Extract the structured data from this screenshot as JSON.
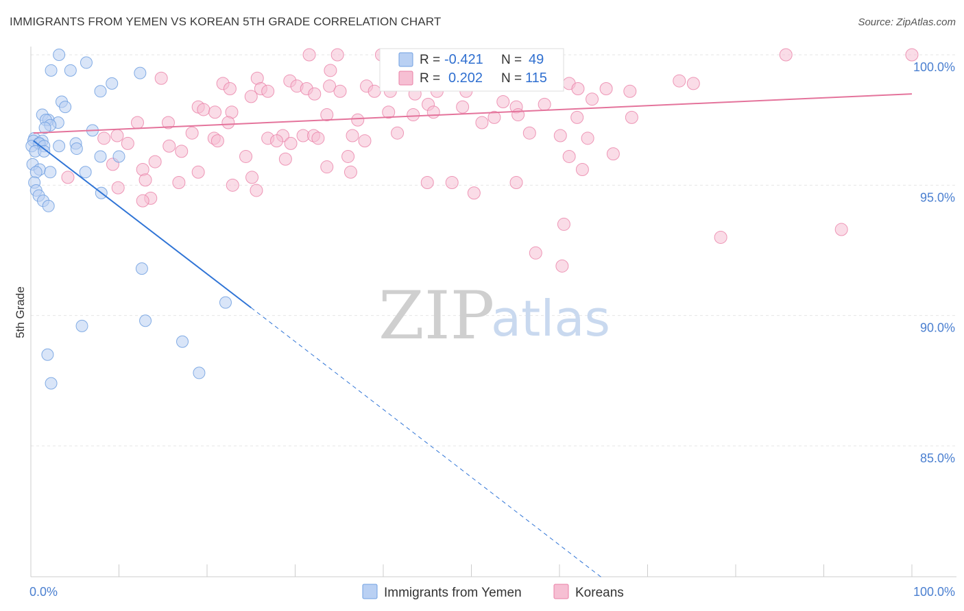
{
  "title": "IMMIGRANTS FROM YEMEN VS KOREAN 5TH GRADE CORRELATION CHART",
  "source": "Source: ZipAtlas.com",
  "watermark": {
    "zip": "ZIP",
    "atlas": "atlas"
  },
  "colors": {
    "blue": "#6f9fe0",
    "blue_fill": "#b9d0f3",
    "blue_line": "#2f74d6",
    "pink": "#ea7fa6",
    "pink_fill": "#f6bfd3",
    "pink_line": "#e4739b",
    "grid": "#e6e6e6",
    "tick_text": "#4a7fd0"
  },
  "legend": {
    "rows": [
      {
        "r_label": "R =",
        "r_value": "-0.421",
        "n_label": "N =",
        "n_value": "49"
      },
      {
        "r_label": "R =",
        "r_value": "0.202",
        "n_label": "N =",
        "n_value": "115"
      }
    ]
  },
  "bottom_legend": [
    "Immigrants from Yemen",
    "Koreans"
  ],
  "chart_data": {
    "type": "scatter",
    "title": "IMMIGRANTS FROM YEMEN VS KOREAN 5TH GRADE CORRELATION CHART",
    "xlabel": "",
    "ylabel": "5th Grade",
    "xlim": [
      0,
      100
    ],
    "ylim": [
      80,
      100.8
    ],
    "x_tick_labels": [
      "0.0%",
      "100.0%"
    ],
    "y_ticks": [
      85,
      90,
      95,
      100
    ],
    "y_tick_labels": [
      "85.0%",
      "90.0%",
      "95.0%",
      "100.0%"
    ],
    "grid": true,
    "legend_position": "top-center",
    "series": [
      {
        "name": "Immigrants from Yemen",
        "r": -0.421,
        "n": 49,
        "trend": {
          "x0": 0.3,
          "y0": 96.7,
          "x1": 25.0,
          "y1": 90.3,
          "dash_to_x": 65.0,
          "dash_to_y": 79.9
        },
        "points": [
          [
            3.2,
            100.0
          ],
          [
            6.3,
            99.7
          ],
          [
            2.3,
            99.4
          ],
          [
            4.5,
            99.4
          ],
          [
            12.4,
            99.3
          ],
          [
            9.2,
            98.9
          ],
          [
            7.9,
            98.6
          ],
          [
            3.5,
            98.2
          ],
          [
            3.9,
            98.0
          ],
          [
            1.3,
            97.7
          ],
          [
            2.0,
            97.5
          ],
          [
            1.7,
            97.5
          ],
          [
            3.1,
            97.4
          ],
          [
            2.2,
            97.3
          ],
          [
            1.6,
            97.2
          ],
          [
            7.0,
            97.1
          ],
          [
            0.4,
            96.8
          ],
          [
            0.3,
            96.7
          ],
          [
            1.3,
            96.7
          ],
          [
            0.9,
            96.6
          ],
          [
            1.0,
            96.6
          ],
          [
            0.1,
            96.5
          ],
          [
            1.5,
            96.5
          ],
          [
            3.2,
            96.5
          ],
          [
            5.1,
            96.6
          ],
          [
            5.2,
            96.4
          ],
          [
            0.5,
            96.3
          ],
          [
            1.5,
            96.3
          ],
          [
            7.9,
            96.1
          ],
          [
            10.0,
            96.1
          ],
          [
            0.2,
            95.8
          ],
          [
            1.0,
            95.6
          ],
          [
            2.2,
            95.5
          ],
          [
            0.6,
            95.5
          ],
          [
            6.2,
            95.5
          ],
          [
            0.4,
            95.1
          ],
          [
            0.6,
            94.8
          ],
          [
            0.9,
            94.6
          ],
          [
            8.0,
            94.7
          ],
          [
            1.4,
            94.4
          ],
          [
            2.0,
            94.2
          ],
          [
            12.6,
            91.8
          ],
          [
            22.1,
            90.5
          ],
          [
            13.0,
            89.8
          ],
          [
            5.8,
            89.6
          ],
          [
            17.2,
            89.0
          ],
          [
            1.9,
            88.5
          ],
          [
            19.1,
            87.8
          ],
          [
            2.3,
            87.4
          ]
        ]
      },
      {
        "name": "Koreans",
        "r": 0.202,
        "n": 115,
        "trend": {
          "x0": 0.3,
          "y0": 97.0,
          "x1": 100.0,
          "y1": 98.5
        },
        "points": [
          [
            31.6,
            100.0
          ],
          [
            34.8,
            100.0
          ],
          [
            39.8,
            100.0
          ],
          [
            49.5,
            100.0
          ],
          [
            56.0,
            100.0
          ],
          [
            85.7,
            100.0
          ],
          [
            100.0,
            100.0
          ],
          [
            47.6,
            99.8
          ],
          [
            59.4,
            99.8
          ],
          [
            34.0,
            99.4
          ],
          [
            43.1,
            99.3
          ],
          [
            56.9,
            99.1
          ],
          [
            14.8,
            99.1
          ],
          [
            25.7,
            99.1
          ],
          [
            21.8,
            98.9
          ],
          [
            29.4,
            99.0
          ],
          [
            30.2,
            98.8
          ],
          [
            33.9,
            98.8
          ],
          [
            26.1,
            98.7
          ],
          [
            38.1,
            98.8
          ],
          [
            48.2,
            98.9
          ],
          [
            57.2,
            98.9
          ],
          [
            61.1,
            98.9
          ],
          [
            73.6,
            99.0
          ],
          [
            75.2,
            98.9
          ],
          [
            22.6,
            98.7
          ],
          [
            26.9,
            98.6
          ],
          [
            31.3,
            98.7
          ],
          [
            35.1,
            98.6
          ],
          [
            39.0,
            98.6
          ],
          [
            40.8,
            98.6
          ],
          [
            46.1,
            98.6
          ],
          [
            49.4,
            98.6
          ],
          [
            62.1,
            98.7
          ],
          [
            65.3,
            98.7
          ],
          [
            68.0,
            98.6
          ],
          [
            25.0,
            98.4
          ],
          [
            32.2,
            98.5
          ],
          [
            43.6,
            98.5
          ],
          [
            53.6,
            98.2
          ],
          [
            58.3,
            98.1
          ],
          [
            63.7,
            98.3
          ],
          [
            55.1,
            98.0
          ],
          [
            19.0,
            98.0
          ],
          [
            45.1,
            98.1
          ],
          [
            49.0,
            98.0
          ],
          [
            40.6,
            97.8
          ],
          [
            19.6,
            97.9
          ],
          [
            22.8,
            97.8
          ],
          [
            20.9,
            97.8
          ],
          [
            33.6,
            97.7
          ],
          [
            43.4,
            97.7
          ],
          [
            45.7,
            97.8
          ],
          [
            52.6,
            97.6
          ],
          [
            55.3,
            97.7
          ],
          [
            62.0,
            97.6
          ],
          [
            68.2,
            97.6
          ],
          [
            37.1,
            97.5
          ],
          [
            51.2,
            97.4
          ],
          [
            22.4,
            97.4
          ],
          [
            12.1,
            97.4
          ],
          [
            15.6,
            97.4
          ],
          [
            18.3,
            97.0
          ],
          [
            20.8,
            96.8
          ],
          [
            26.9,
            96.8
          ],
          [
            30.9,
            96.9
          ],
          [
            36.5,
            96.9
          ],
          [
            37.9,
            96.7
          ],
          [
            41.6,
            97.0
          ],
          [
            56.6,
            97.0
          ],
          [
            60.1,
            96.9
          ],
          [
            63.2,
            96.8
          ],
          [
            28.6,
            96.9
          ],
          [
            32.1,
            96.9
          ],
          [
            27.9,
            96.7
          ],
          [
            29.5,
            96.6
          ],
          [
            32.6,
            96.8
          ],
          [
            21.2,
            96.7
          ],
          [
            8.3,
            96.8
          ],
          [
            9.8,
            96.9
          ],
          [
            11.0,
            96.6
          ],
          [
            15.7,
            96.5
          ],
          [
            17.1,
            96.3
          ],
          [
            24.4,
            96.1
          ],
          [
            36.0,
            96.1
          ],
          [
            28.9,
            96.0
          ],
          [
            33.6,
            95.7
          ],
          [
            36.3,
            95.5
          ],
          [
            45.0,
            95.1
          ],
          [
            47.8,
            95.1
          ],
          [
            55.1,
            95.1
          ],
          [
            62.6,
            95.6
          ],
          [
            66.1,
            96.2
          ],
          [
            61.1,
            96.1
          ],
          [
            14.1,
            95.9
          ],
          [
            9.3,
            95.8
          ],
          [
            12.7,
            95.6
          ],
          [
            19.0,
            95.5
          ],
          [
            22.9,
            95.0
          ],
          [
            25.1,
            95.3
          ],
          [
            13.0,
            95.2
          ],
          [
            16.8,
            95.1
          ],
          [
            9.9,
            94.9
          ],
          [
            25.6,
            94.8
          ],
          [
            13.6,
            94.5
          ],
          [
            12.7,
            94.4
          ],
          [
            50.3,
            94.7
          ],
          [
            60.5,
            93.5
          ],
          [
            92.0,
            93.3
          ],
          [
            78.3,
            93.0
          ],
          [
            57.3,
            92.4
          ],
          [
            60.3,
            91.9
          ],
          [
            4.2,
            95.3
          ]
        ]
      }
    ]
  }
}
